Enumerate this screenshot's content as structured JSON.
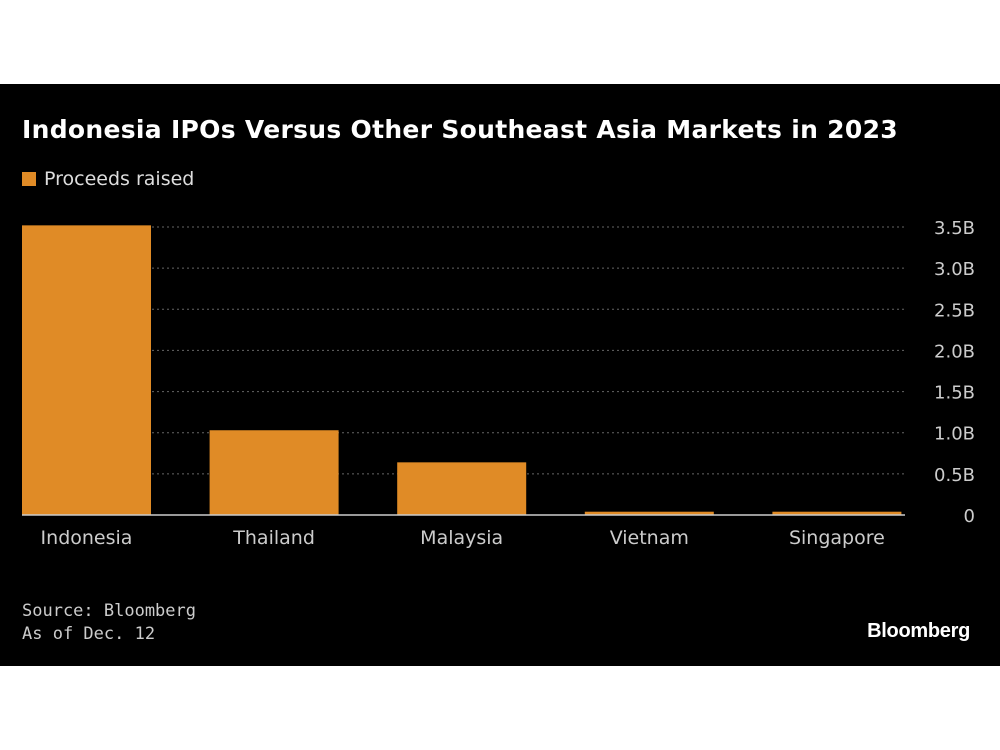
{
  "chart_data": {
    "type": "bar",
    "title": "Indonesia IPOs Versus Other Southeast Asia Markets in 2023",
    "categories": [
      "Indonesia",
      "Thailand",
      "Malaysia",
      "Vietnam",
      "Singapore"
    ],
    "series": [
      {
        "name": "Proceeds raised",
        "values": [
          3.52,
          1.03,
          0.64,
          0.04,
          0.04
        ]
      }
    ],
    "unit": "B",
    "ylim": [
      0,
      3.5
    ],
    "yticks": [
      0,
      0.5,
      1.0,
      1.5,
      2.0,
      2.5,
      3.0,
      3.5
    ],
    "ytick_labels": [
      "0",
      "0.5B",
      "1.0B",
      "1.5B",
      "2.0B",
      "2.5B",
      "3.0B",
      "3.5B"
    ],
    "grid": true,
    "y_axis_position": "right",
    "legend_position": "top-left",
    "colors": {
      "bar": "#e08b26",
      "background": "#000000",
      "grid": "#666666",
      "baseline": "#cccccc"
    }
  },
  "source": "Source: Bloomberg",
  "note": "As of Dec. 12",
  "logo": "Bloomberg"
}
